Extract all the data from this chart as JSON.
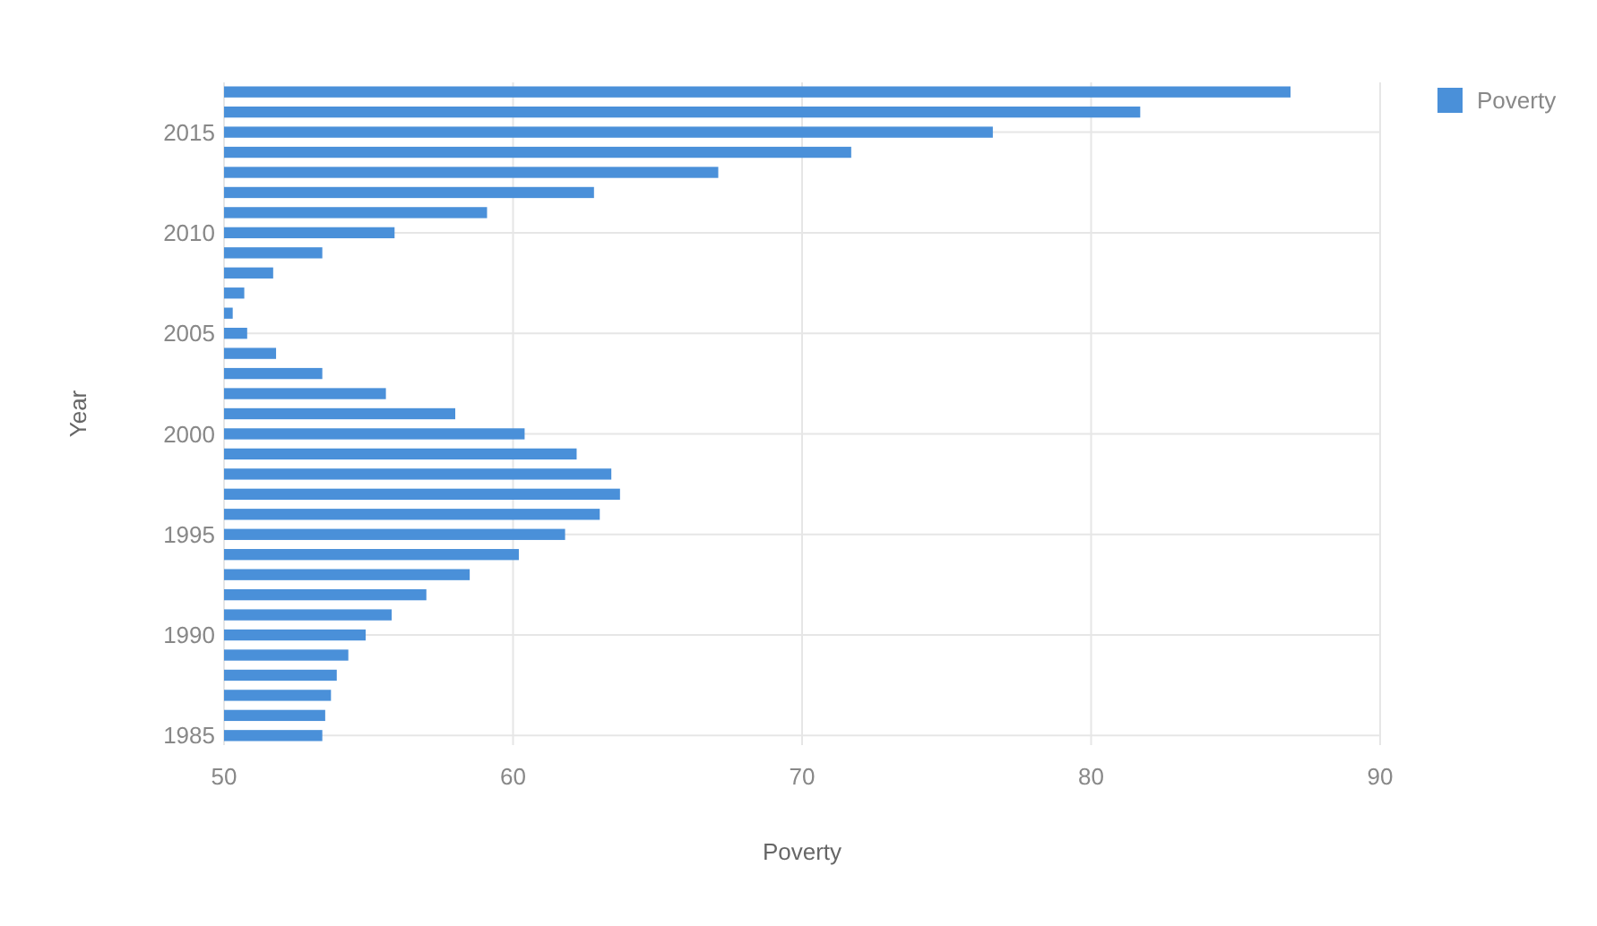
{
  "chart_data": {
    "type": "bar",
    "orientation": "horizontal",
    "xlabel": "Poverty",
    "ylabel": "Year",
    "categories": [
      null,
      null,
      "2015",
      null,
      null,
      null,
      null,
      "2010",
      null,
      null,
      null,
      null,
      "2005",
      null,
      null,
      null,
      null,
      "2000",
      null,
      null,
      null,
      null,
      "1995",
      null,
      null,
      null,
      null,
      "1990",
      null,
      null,
      null,
      null,
      "1985"
    ],
    "series": [
      {
        "name": "Poverty",
        "color": "#4a90d9",
        "values": [
          86.9,
          81.7,
          76.6,
          71.7,
          67.1,
          62.8,
          59.1,
          55.9,
          53.4,
          51.7,
          50.7,
          50.3,
          50.8,
          51.8,
          53.4,
          55.6,
          58.0,
          60.4,
          62.2,
          63.4,
          63.7,
          63.0,
          61.8,
          60.2,
          58.5,
          57.0,
          55.8,
          54.9,
          54.3,
          53.9,
          53.7,
          53.5,
          53.4
        ]
      }
    ],
    "xlim": [
      50,
      90
    ],
    "xticks": [
      50,
      60,
      70,
      80,
      90
    ],
    "grid": true,
    "legend": "top right"
  }
}
